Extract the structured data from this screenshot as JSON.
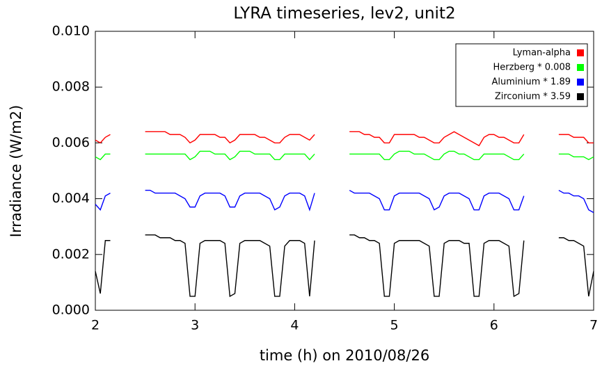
{
  "chart_data": {
    "type": "line",
    "title": "LYRA timeseries, lev2, unit2",
    "xlabel": "time (h) on 2010/08/26",
    "ylabel": "Irradiance (W/m2)",
    "x": [
      2,
      2.05,
      2.1,
      2.15,
      2.2,
      2.25,
      2.3,
      2.35,
      2.4,
      2.45,
      2.5,
      2.55,
      2.6,
      2.65,
      2.7,
      2.75,
      2.8,
      2.85,
      2.9,
      2.95,
      3,
      3.05,
      3.1,
      3.15,
      3.2,
      3.25,
      3.3,
      3.35,
      3.4,
      3.45,
      3.5,
      3.55,
      3.6,
      3.65,
      3.7,
      3.75,
      3.8,
      3.85,
      3.9,
      3.95,
      4,
      4.05,
      4.1,
      4.15,
      4.2,
      4.25,
      4.3,
      4.35,
      4.4,
      4.45,
      4.5,
      4.55,
      4.6,
      4.65,
      4.7,
      4.75,
      4.8,
      4.85,
      4.9,
      4.95,
      5,
      5.05,
      5.1,
      5.15,
      5.2,
      5.25,
      5.3,
      5.35,
      5.4,
      5.45,
      5.5,
      5.55,
      5.6,
      5.65,
      5.7,
      5.75,
      5.8,
      5.85,
      5.9,
      5.95,
      6,
      6.05,
      6.1,
      6.15,
      6.2,
      6.25,
      6.3,
      6.35,
      6.4,
      6.45,
      6.5,
      6.55,
      6.6,
      6.65,
      6.7,
      6.75,
      6.8,
      6.85,
      6.9,
      6.95,
      7
    ],
    "series": [
      {
        "name": "Lyman-alpha",
        "color": "#ff0000",
        "values": [
          0.0061,
          0.006,
          0.0062,
          0.0063,
          null,
          null,
          null,
          null,
          null,
          null,
          0.0064,
          0.0064,
          0.0064,
          0.0064,
          0.0064,
          0.0063,
          0.0063,
          0.0063,
          0.0062,
          0.006,
          0.0061,
          0.0063,
          0.0063,
          0.0063,
          0.0063,
          0.0062,
          0.0062,
          0.006,
          0.0061,
          0.0063,
          0.0063,
          0.0063,
          0.0063,
          0.0062,
          0.0062,
          0.0061,
          0.006,
          0.006,
          0.0062,
          0.0063,
          0.0063,
          0.0063,
          0.0062,
          0.0061,
          0.0063,
          null,
          null,
          null,
          null,
          null,
          null,
          0.0064,
          0.0064,
          0.0064,
          0.0063,
          0.0063,
          0.0062,
          0.0062,
          0.006,
          0.006,
          0.0063,
          0.0063,
          0.0063,
          0.0063,
          0.0063,
          0.0062,
          0.0062,
          0.0061,
          0.006,
          0.006,
          0.0062,
          0.0063,
          0.0064,
          0.0063,
          0.0062,
          0.0061,
          0.006,
          0.0059,
          0.0062,
          0.0063,
          0.0063,
          0.0062,
          0.0062,
          0.0061,
          0.006,
          0.006,
          0.0063,
          null,
          null,
          null,
          null,
          null,
          null,
          0.0063,
          0.0063,
          0.0063,
          0.0062,
          0.0062,
          0.0062,
          0.006,
          0.006
        ]
      },
      {
        "name": "Herzberg * 0.008",
        "color": "#00ff00",
        "values": [
          0.0055,
          0.0054,
          0.0056,
          0.0056,
          null,
          null,
          null,
          null,
          null,
          null,
          0.0056,
          0.0056,
          0.0056,
          0.0056,
          0.0056,
          0.0056,
          0.0056,
          0.0056,
          0.0056,
          0.0054,
          0.0055,
          0.0057,
          0.0057,
          0.0057,
          0.0056,
          0.0056,
          0.0056,
          0.0054,
          0.0055,
          0.0057,
          0.0057,
          0.0057,
          0.0056,
          0.0056,
          0.0056,
          0.0056,
          0.0054,
          0.0054,
          0.0056,
          0.0056,
          0.0056,
          0.0056,
          0.0056,
          0.0054,
          0.0056,
          null,
          null,
          null,
          null,
          null,
          null,
          0.0056,
          0.0056,
          0.0056,
          0.0056,
          0.0056,
          0.0056,
          0.0056,
          0.0054,
          0.0054,
          0.0056,
          0.0057,
          0.0057,
          0.0057,
          0.0056,
          0.0056,
          0.0056,
          0.0055,
          0.0054,
          0.0054,
          0.0056,
          0.0057,
          0.0057,
          0.0056,
          0.0056,
          0.0055,
          0.0054,
          0.0054,
          0.0056,
          0.0056,
          0.0056,
          0.0056,
          0.0056,
          0.0055,
          0.0054,
          0.0054,
          0.0056,
          null,
          null,
          null,
          null,
          null,
          null,
          0.0056,
          0.0056,
          0.0056,
          0.0055,
          0.0055,
          0.0055,
          0.0054,
          0.0055
        ]
      },
      {
        "name": "Aluminium * 1.89",
        "color": "#0000ff",
        "values": [
          0.0038,
          0.0036,
          0.0041,
          0.0042,
          null,
          null,
          null,
          null,
          null,
          null,
          0.0043,
          0.0043,
          0.0042,
          0.0042,
          0.0042,
          0.0042,
          0.0042,
          0.0041,
          0.004,
          0.0037,
          0.0037,
          0.0041,
          0.0042,
          0.0042,
          0.0042,
          0.0042,
          0.0041,
          0.0037,
          0.0037,
          0.0041,
          0.0042,
          0.0042,
          0.0042,
          0.0042,
          0.0041,
          0.004,
          0.0036,
          0.0037,
          0.0041,
          0.0042,
          0.0042,
          0.0042,
          0.0041,
          0.0036,
          0.0042,
          null,
          null,
          null,
          null,
          null,
          null,
          0.0043,
          0.0042,
          0.0042,
          0.0042,
          0.0042,
          0.0041,
          0.004,
          0.0036,
          0.0036,
          0.0041,
          0.0042,
          0.0042,
          0.0042,
          0.0042,
          0.0042,
          0.0041,
          0.004,
          0.0036,
          0.0037,
          0.0041,
          0.0042,
          0.0042,
          0.0042,
          0.0041,
          0.004,
          0.0036,
          0.0036,
          0.0041,
          0.0042,
          0.0042,
          0.0042,
          0.0041,
          0.004,
          0.0036,
          0.0036,
          0.0041,
          null,
          null,
          null,
          null,
          null,
          null,
          0.0043,
          0.0042,
          0.0042,
          0.0041,
          0.0041,
          0.004,
          0.0036,
          0.0035
        ]
      },
      {
        "name": "Zirconium * 3.59",
        "color": "#000000",
        "values": [
          0.0014,
          0.0006,
          0.0025,
          0.0025,
          null,
          null,
          null,
          null,
          null,
          null,
          0.0027,
          0.0027,
          0.0027,
          0.0026,
          0.0026,
          0.0026,
          0.0025,
          0.0025,
          0.0024,
          0.0005,
          0.0005,
          0.0024,
          0.0025,
          0.0025,
          0.0025,
          0.0025,
          0.0024,
          0.0005,
          0.0006,
          0.0024,
          0.0025,
          0.0025,
          0.0025,
          0.0025,
          0.0024,
          0.0023,
          0.0005,
          0.0005,
          0.0023,
          0.0025,
          0.0025,
          0.0025,
          0.0024,
          0.0005,
          0.0025,
          null,
          null,
          null,
          null,
          null,
          null,
          0.0027,
          0.0027,
          0.0026,
          0.0026,
          0.0025,
          0.0025,
          0.0024,
          0.0005,
          0.0005,
          0.0024,
          0.0025,
          0.0025,
          0.0025,
          0.0025,
          0.0025,
          0.0024,
          0.0023,
          0.0005,
          0.0005,
          0.0024,
          0.0025,
          0.0025,
          0.0025,
          0.0024,
          0.0024,
          0.0005,
          0.0005,
          0.0024,
          0.0025,
          0.0025,
          0.0025,
          0.0024,
          0.0023,
          0.0005,
          0.0006,
          0.0025,
          null,
          null,
          null,
          null,
          null,
          null,
          0.0026,
          0.0026,
          0.0025,
          0.0025,
          0.0024,
          0.0023,
          0.0005,
          0.0014
        ]
      }
    ],
    "xlim": [
      2,
      7
    ],
    "ylim": [
      0,
      0.01
    ],
    "xticks": [
      2,
      3,
      4,
      5,
      6,
      7
    ],
    "yticks": [
      {
        "value": 0,
        "label": "0.000"
      },
      {
        "value": 0.002,
        "label": "0.002"
      },
      {
        "value": 0.004,
        "label": "0.004"
      },
      {
        "value": 0.006,
        "label": "0.006"
      },
      {
        "value": 0.008,
        "label": "0.008"
      },
      {
        "value": 0.01,
        "label": "0.010"
      }
    ],
    "legend": "upper right",
    "grid": false
  }
}
